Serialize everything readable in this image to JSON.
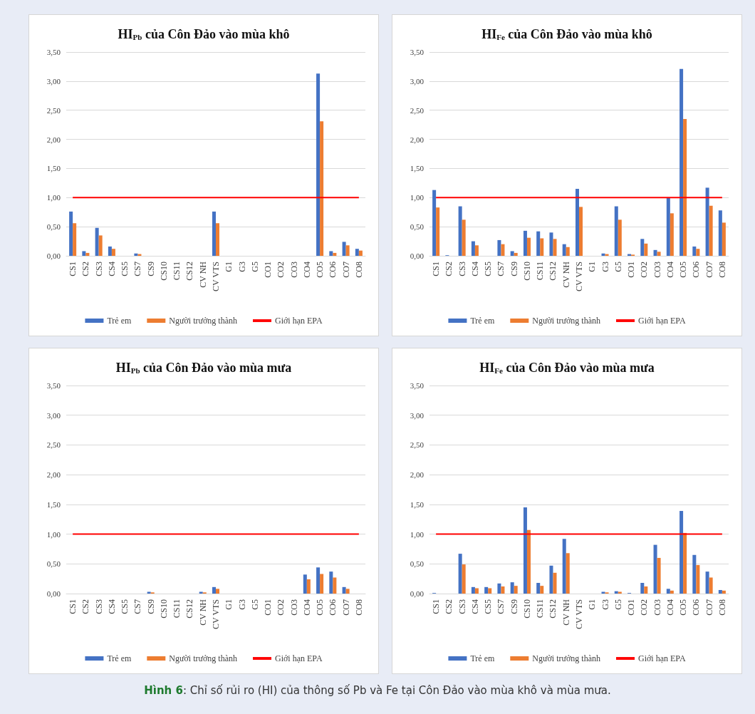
{
  "chart_data": [
    {
      "type": "bar",
      "title": "HI$_{Pb}$ của Côn Đảo vào mùa khô",
      "categories": [
        "CS1",
        "CS2",
        "CS3",
        "CS4",
        "CS5",
        "CS7",
        "CS9",
        "CS10",
        "CS11",
        "CS12",
        "CV NH",
        "CV VTS",
        "G1",
        "G3",
        "G5",
        "CO1",
        "CO2",
        "CO3",
        "CO4",
        "CO5",
        "CO6",
        "CO7",
        "CO8"
      ],
      "series": [
        {
          "name": "Trẻ em",
          "color": "#4472c4",
          "values": [
            0.76,
            0.08,
            0.48,
            0.16,
            0,
            0.04,
            0,
            0,
            0,
            0,
            0,
            0.76,
            0,
            0,
            0,
            0,
            0,
            0,
            0,
            3.13,
            0.08,
            0.24,
            0.12
          ]
        },
        {
          "name": "Người trưởng thành",
          "color": "#ed7d31",
          "values": [
            0.56,
            0.05,
            0.35,
            0.12,
            0,
            0.03,
            0,
            0,
            0,
            0,
            0,
            0.56,
            0,
            0,
            0,
            0,
            0,
            0,
            0,
            2.31,
            0.05,
            0.18,
            0.09
          ]
        },
        {
          "name": "Giới hạn EPA",
          "type": "line",
          "color": "#ff0000",
          "values": [
            1,
            1,
            1,
            1,
            1,
            1,
            1,
            1,
            1,
            1,
            1,
            1,
            1,
            1,
            1,
            1,
            1,
            1,
            1,
            1,
            1,
            1,
            1
          ]
        }
      ],
      "ylim": [
        0,
        3.5
      ],
      "yticks": [
        {
          "value": 0,
          "label": "0,00"
        },
        {
          "value": 0.5,
          "label": "0,50"
        },
        {
          "value": 1,
          "label": "1,00"
        },
        {
          "value": 1.5,
          "label": "1,50"
        },
        {
          "value": 2,
          "label": "2,00"
        },
        {
          "value": 2.5,
          "label": "2,50"
        },
        {
          "value": 3,
          "label": "3,00"
        },
        {
          "value": 3.5,
          "label": "3,50"
        }
      ],
      "grid": "y",
      "legend": "bottom",
      "marker": "none"
    },
    {
      "type": "bar",
      "title": "HI$_{Fe}$ của Côn Đảo vào mùa khô",
      "categories": [
        "CS1",
        "CS2",
        "CS3",
        "CS4",
        "CS5",
        "CS7",
        "CS9",
        "CS10",
        "CS11",
        "CS12",
        "CV NH",
        "CV VTS",
        "G1",
        "G3",
        "G5",
        "CO1",
        "CO2",
        "CO3",
        "CO4",
        "CO5",
        "CO6",
        "CO7",
        "CO8"
      ],
      "series": [
        {
          "name": "Trẻ em",
          "color": "#4472c4",
          "values": [
            1.13,
            0.01,
            0.85,
            0.25,
            0,
            0.27,
            0.08,
            0.43,
            0.42,
            0.4,
            0.2,
            1.15,
            0,
            0.04,
            0.85,
            0.03,
            0.29,
            0.1,
            1.0,
            3.21,
            0.16,
            1.17,
            0.78
          ]
        },
        {
          "name": "Người trưởng thành",
          "color": "#ed7d31",
          "values": [
            0.83,
            0,
            0.62,
            0.18,
            0,
            0.2,
            0.05,
            0.31,
            0.3,
            0.29,
            0.15,
            0.84,
            0,
            0.03,
            0.62,
            0.02,
            0.21,
            0.07,
            0.73,
            2.35,
            0.12,
            0.86,
            0.57
          ]
        },
        {
          "name": "Giới hạn EPA",
          "type": "line",
          "color": "#ff0000",
          "values": [
            1,
            1,
            1,
            1,
            1,
            1,
            1,
            1,
            1,
            1,
            1,
            1,
            1,
            1,
            1,
            1,
            1,
            1,
            1,
            1,
            1,
            1,
            1
          ]
        }
      ],
      "ylim": [
        0,
        3.5
      ],
      "yticks": [
        {
          "value": 0,
          "label": "0,00"
        },
        {
          "value": 0.5,
          "label": "0,50"
        },
        {
          "value": 1,
          "label": "1,00"
        },
        {
          "value": 1.5,
          "label": "1,50"
        },
        {
          "value": 2,
          "label": "2,00"
        },
        {
          "value": 2.5,
          "label": "2,50"
        },
        {
          "value": 3,
          "label": "3,00"
        },
        {
          "value": 3.5,
          "label": "3,50"
        }
      ],
      "grid": "y",
      "legend": "bottom",
      "marker": "none"
    },
    {
      "type": "bar",
      "title": "HI$_{Pb}$ của Côn Đảo vào mùa mưa",
      "categories": [
        "CS1",
        "CS2",
        "CS3",
        "CS4",
        "CS5",
        "CS7",
        "CS9",
        "CS10",
        "CS11",
        "CS12",
        "CV NH",
        "CV VTS",
        "G1",
        "G3",
        "G5",
        "CO1",
        "CO2",
        "CO3",
        "CO4",
        "CO5",
        "CO6",
        "CO7",
        "CO8"
      ],
      "series": [
        {
          "name": "Trẻ em",
          "color": "#4472c4",
          "values": [
            0,
            0,
            0,
            0,
            0,
            0,
            0.03,
            0,
            0,
            0,
            0.03,
            0.11,
            0,
            0,
            0,
            0,
            0,
            0,
            0.32,
            0.44,
            0.37,
            0.11,
            0
          ]
        },
        {
          "name": "Người trưởng thành",
          "color": "#ed7d31",
          "values": [
            0,
            0,
            0,
            0,
            0,
            0,
            0.02,
            0,
            0,
            0,
            0.02,
            0.08,
            0,
            0,
            0,
            0,
            0,
            0,
            0.24,
            0.33,
            0.27,
            0.08,
            0
          ]
        },
        {
          "name": "Giới hạn EPA",
          "type": "line",
          "color": "#ff0000",
          "values": [
            1,
            1,
            1,
            1,
            1,
            1,
            1,
            1,
            1,
            1,
            1,
            1,
            1,
            1,
            1,
            1,
            1,
            1,
            1,
            1,
            1,
            1,
            1
          ]
        }
      ],
      "ylim": [
        0,
        3.5
      ],
      "yticks": [
        {
          "value": 0,
          "label": "0,00"
        },
        {
          "value": 0.5,
          "label": "0,50"
        },
        {
          "value": 1,
          "label": "1,00"
        },
        {
          "value": 1.5,
          "label": "1,50"
        },
        {
          "value": 2,
          "label": "2,00"
        },
        {
          "value": 2.5,
          "label": "2,50"
        },
        {
          "value": 3,
          "label": "3,00"
        },
        {
          "value": 3.5,
          "label": "3,50"
        }
      ],
      "grid": "y",
      "legend": "bottom",
      "marker": "none"
    },
    {
      "type": "bar",
      "title": "HI$_{Fe}$ của Côn Đảo vào mùa mưa",
      "categories": [
        "CS1",
        "CS2",
        "CS3",
        "CS4",
        "CS5",
        "CS7",
        "CS9",
        "CS10",
        "CS11",
        "CS12",
        "CV NH",
        "CV VTS",
        "G1",
        "G3",
        "G5",
        "CO1",
        "CO2",
        "CO3",
        "CO4",
        "CO5",
        "CO6",
        "CO7",
        "CO8"
      ],
      "series": [
        {
          "name": "Trẻ em",
          "color": "#4472c4",
          "values": [
            0.01,
            0,
            0.67,
            0.11,
            0.11,
            0.17,
            0.19,
            1.45,
            0.18,
            0.47,
            0.92,
            0,
            0,
            0.03,
            0.04,
            0.01,
            0.18,
            0.82,
            0.08,
            1.39,
            0.65,
            0.37,
            0.06
          ]
        },
        {
          "name": "Người trưởng thành",
          "color": "#ed7d31",
          "values": [
            0,
            0,
            0.49,
            0.09,
            0.09,
            0.12,
            0.13,
            1.07,
            0.13,
            0.35,
            0.68,
            0,
            0,
            0.02,
            0.03,
            0,
            0.12,
            0.6,
            0.05,
            1.02,
            0.48,
            0.27,
            0.05
          ]
        },
        {
          "name": "Giới hạn EPA",
          "type": "line",
          "color": "#ff0000",
          "values": [
            1,
            1,
            1,
            1,
            1,
            1,
            1,
            1,
            1,
            1,
            1,
            1,
            1,
            1,
            1,
            1,
            1,
            1,
            1,
            1,
            1,
            1,
            1
          ]
        }
      ],
      "ylim": [
        0,
        3.5
      ],
      "yticks": [
        {
          "value": 0,
          "label": "0,00"
        },
        {
          "value": 0.5,
          "label": "0,50"
        },
        {
          "value": 1,
          "label": "1,00"
        },
        {
          "value": 1.5,
          "label": "1,50"
        },
        {
          "value": 2,
          "label": "2,00"
        },
        {
          "value": 2.5,
          "label": "2,50"
        },
        {
          "value": 3,
          "label": "3,00"
        },
        {
          "value": 3.5,
          "label": "3,50"
        }
      ],
      "grid": "y",
      "legend": "bottom",
      "marker": "none",
      "annotations": [
        "Hình 6: Chỉ số rủi ro (HI) của thông số Pb và Fe tại Côn Đảo vào mùa khô và mùa mưa."
      ]
    }
  ]
}
